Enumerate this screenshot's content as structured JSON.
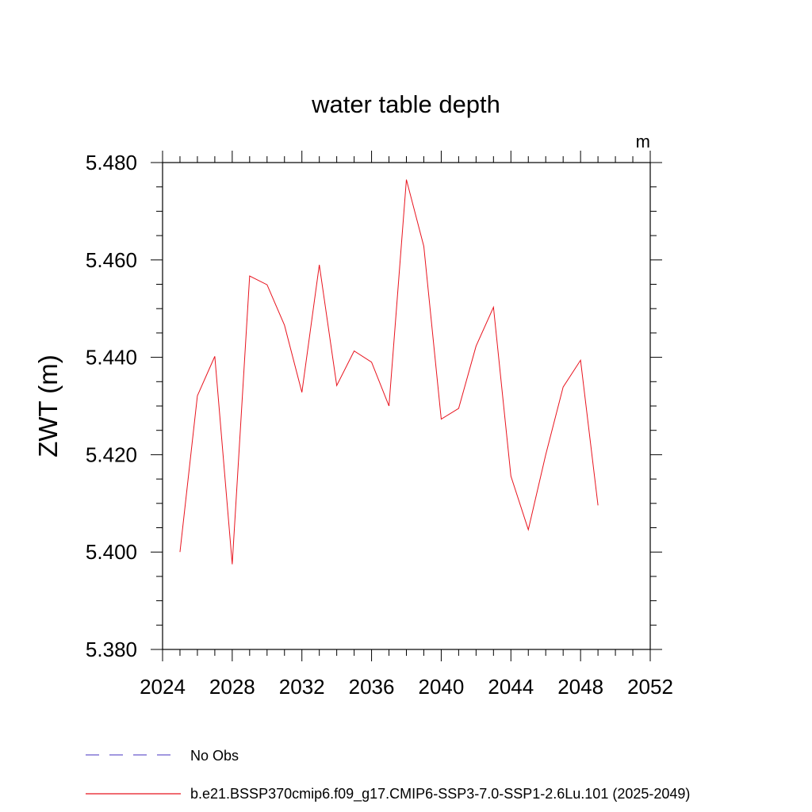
{
  "chart_data": {
    "type": "line",
    "title": "water table depth",
    "units_label": "m",
    "ylabel": "ZWT  (m)",
    "xlabel": "",
    "xlim": [
      2024,
      2052
    ],
    "ylim": [
      5.38,
      5.48
    ],
    "x_ticks": [
      "2024",
      "2028",
      "2032",
      "2036",
      "2040",
      "2044",
      "2048",
      "2052"
    ],
    "y_ticks": [
      "5.380",
      "5.400",
      "5.420",
      "5.440",
      "5.460",
      "5.480"
    ],
    "series": [
      {
        "name": "b.e21.BSSP370cmip6.f09_g17.CMIP6-SSP3-7.0-SSP1-2.6Lu.101 (2025-2049)",
        "color": "#e8141e",
        "style": "solid",
        "x": [
          2025,
          2026,
          2027,
          2028,
          2029,
          2030,
          2031,
          2032,
          2033,
          2034,
          2035,
          2036,
          2037,
          2038,
          2039,
          2040,
          2041,
          2042,
          2043,
          2044,
          2045,
          2046,
          2047,
          2048,
          2049
        ],
        "values": [
          5.4,
          5.4321,
          5.4402,
          5.3975,
          5.4567,
          5.4549,
          5.4466,
          5.4328,
          5.459,
          5.4342,
          5.4413,
          5.439,
          5.43,
          5.4765,
          5.4628,
          5.4273,
          5.4295,
          5.4423,
          5.4503,
          5.4156,
          5.4046,
          5.42,
          5.4339,
          5.4394,
          5.4096
        ]
      }
    ],
    "legend": [
      {
        "label": "No Obs",
        "color": "#6a5acd",
        "style": "dashed"
      },
      {
        "label": "b.e21.BSSP370cmip6.f09_g17.CMIP6-SSP3-7.0-SSP1-2.6Lu.101 (2025-2049)",
        "color": "#e8141e",
        "style": "solid"
      }
    ],
    "legend_position": "bottom-left",
    "grid": false
  }
}
